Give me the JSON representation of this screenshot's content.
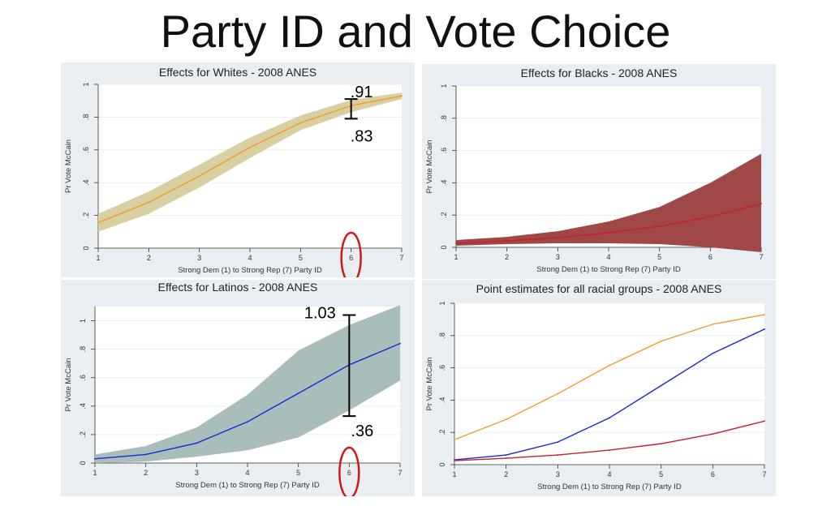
{
  "page_title": "Party ID and Vote Choice",
  "chart_data": [
    {
      "type": "area",
      "title": "Effects for Whites - 2008 ANES",
      "xlabel": "Strong Dem (1) to Strong Rep (7) Party ID",
      "ylabel": "Pr Vote McCain",
      "xlim": [
        1,
        7
      ],
      "ylim": [
        0,
        1
      ],
      "xticks": [
        "1",
        "2",
        "3",
        "4",
        "5",
        "6",
        "7"
      ],
      "yticks": [
        {
          "v": 0,
          "label": "0"
        },
        {
          "v": 0.2,
          "label": ".2"
        },
        {
          "v": 0.4,
          "label": ".4"
        },
        {
          "v": 0.6,
          "label": ".6"
        },
        {
          "v": 0.8,
          "label": ".8"
        },
        {
          "v": 1,
          "label": "1"
        }
      ],
      "grid": true,
      "x": [
        1,
        2,
        3,
        4,
        5,
        6,
        7
      ],
      "series": [
        {
          "values": [
            0.155,
            0.28,
            0.44,
            0.615,
            0.765,
            0.87,
            0.93
          ],
          "lower": [
            0.1,
            0.21,
            0.37,
            0.55,
            0.72,
            0.83,
            0.91
          ],
          "upper": [
            0.21,
            0.345,
            0.51,
            0.675,
            0.81,
            0.905,
            0.95
          ],
          "color": "#f39a2e",
          "band_color": "#d8d0a0"
        }
      ],
      "annotations": [
        {
          "type": "errorbar",
          "x": 6,
          "lo": 0.79,
          "hi": 0.91,
          "top_label": ".91",
          "bottom_label": ".83"
        },
        {
          "type": "ellipse",
          "x": 6,
          "color": "#d01818"
        }
      ]
    },
    {
      "type": "area",
      "title": "Effects for Blacks - 2008 ANES",
      "xlabel": "Strong Dem (1) to Strong Rep (7) Party ID",
      "ylabel": "Pr Vote McCain",
      "xlim": [
        1,
        7
      ],
      "ylim": [
        0,
        1
      ],
      "xticks": [
        "1",
        "2",
        "3",
        "4",
        "5",
        "6",
        "7"
      ],
      "yticks": [
        {
          "v": 0,
          "label": "0"
        },
        {
          "v": 0.2,
          "label": ".2"
        },
        {
          "v": 0.4,
          "label": ".4"
        },
        {
          "v": 0.6,
          "label": ".6"
        },
        {
          "v": 0.8,
          "label": ".8"
        },
        {
          "v": 1,
          "label": "1"
        }
      ],
      "grid": true,
      "x": [
        1,
        2,
        3,
        4,
        5,
        6,
        7
      ],
      "series": [
        {
          "values": [
            0.025,
            0.04,
            0.06,
            0.09,
            0.13,
            0.19,
            0.27
          ],
          "lower": [
            0.01,
            0.02,
            0.025,
            0.025,
            0.02,
            0.0,
            -0.03
          ],
          "upper": [
            0.045,
            0.065,
            0.1,
            0.16,
            0.25,
            0.4,
            0.58
          ],
          "color": "#c81e30",
          "band_color": "#a04848"
        }
      ],
      "annotations": []
    },
    {
      "type": "area",
      "title": "Effects for Latinos - 2008 ANES",
      "xlabel": "Strong Dem (1) to Strong Rep (7) Party ID",
      "ylabel": "Pr Vote McCain",
      "xlim": [
        1,
        7
      ],
      "ylim": [
        0,
        1.1
      ],
      "xticks": [
        "1",
        "2",
        "3",
        "4",
        "5",
        "6",
        "7"
      ],
      "yticks": [
        {
          "v": 0,
          "label": "0"
        },
        {
          "v": 0.2,
          "label": ".2"
        },
        {
          "v": 0.4,
          "label": ".4"
        },
        {
          "v": 0.6,
          "label": ".6"
        },
        {
          "v": 0.8,
          "label": ".8"
        },
        {
          "v": 1,
          "label": "1"
        }
      ],
      "grid": true,
      "x": [
        1,
        2,
        3,
        4,
        5,
        6,
        7
      ],
      "series": [
        {
          "values": [
            0.03,
            0.06,
            0.14,
            0.29,
            0.49,
            0.69,
            0.84
          ],
          "lower": [
            0.0,
            0.01,
            0.045,
            0.09,
            0.18,
            0.37,
            0.58
          ],
          "upper": [
            0.06,
            0.12,
            0.25,
            0.48,
            0.79,
            0.97,
            1.11
          ],
          "color": "#1a28d8",
          "band_color": "#a9bdbb"
        }
      ],
      "annotations": [
        {
          "type": "errorbar",
          "x": 6,
          "lo": 0.33,
          "hi": 1.04,
          "top_label": "1.03",
          "bottom_label": ".36"
        },
        {
          "type": "ellipse",
          "x": 6,
          "color": "#d01818"
        }
      ]
    },
    {
      "type": "line",
      "title": "Point estimates for all racial groups - 2008 ANES",
      "xlabel": "Strong Dem (1) to Strong Rep (7) Party ID",
      "ylabel": "Pr Vote McCain",
      "xlim": [
        1,
        7
      ],
      "ylim": [
        0,
        1
      ],
      "xticks": [
        "1",
        "2",
        "3",
        "4",
        "5",
        "6",
        "7"
      ],
      "yticks": [
        {
          "v": 0,
          "label": "0"
        },
        {
          "v": 0.2,
          "label": ".2"
        },
        {
          "v": 0.4,
          "label": ".4"
        },
        {
          "v": 0.6,
          "label": ".6"
        },
        {
          "v": 0.8,
          "label": ".8"
        },
        {
          "v": 1,
          "label": "1"
        }
      ],
      "grid": true,
      "x": [
        1,
        2,
        3,
        4,
        5,
        6,
        7
      ],
      "series": [
        {
          "values": [
            0.155,
            0.28,
            0.44,
            0.615,
            0.765,
            0.87,
            0.93
          ],
          "color": "#f39a2e"
        },
        {
          "values": [
            0.03,
            0.06,
            0.14,
            0.29,
            0.49,
            0.69,
            0.84
          ],
          "color": "#1a28d8"
        },
        {
          "values": [
            0.025,
            0.04,
            0.06,
            0.09,
            0.13,
            0.19,
            0.27
          ],
          "color": "#c81e30"
        }
      ],
      "annotations": []
    }
  ]
}
